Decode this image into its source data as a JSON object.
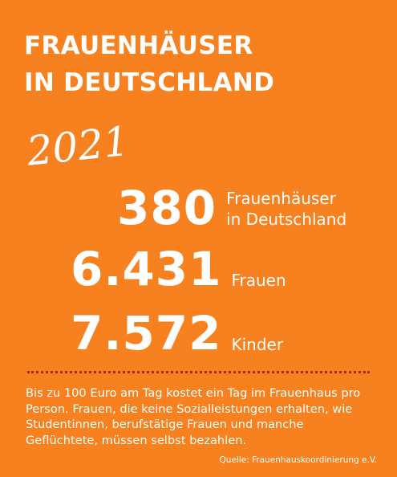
{
  "title": {
    "line1": "FRAUENHÄUSER",
    "line2": "IN DEUTSCHLAND"
  },
  "year": "2021",
  "stats": [
    {
      "number": "380",
      "label_line1": "Frauenhäuser",
      "label_line2": "in Deutschland"
    },
    {
      "number": "6.431",
      "label_line1": "Frauen",
      "label_line2": ""
    },
    {
      "number": "7.572",
      "label_line1": "Kinder",
      "label_line2": ""
    }
  ],
  "description": "Bis zu 100 Euro am Tag kostet ein Tag im Frauenhaus pro Person. Frauen, die keine Sozialleistungen erhalten, wie Studentinnen, berufstätige Frauen und manche Geflüchtete, müssen selbst bezahlen.",
  "source": "Quelle: Frauenhauskoordinierung e.V.",
  "colors": {
    "background": "#f7801f",
    "text": "#ffffff",
    "divider": "#a72d18"
  }
}
